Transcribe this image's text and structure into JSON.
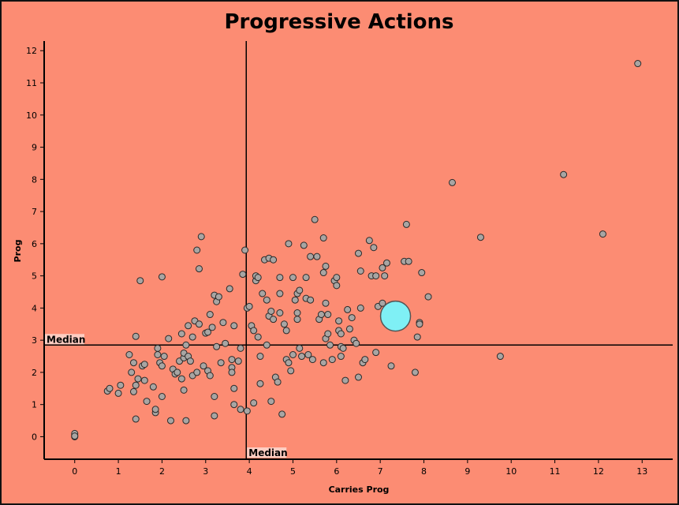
{
  "chart_data": {
    "type": "scatter",
    "title": "Progressive Actions",
    "xlabel": "Carries Prog",
    "ylabel": "Prog",
    "xlim": [
      -0.7,
      13.7
    ],
    "ylim": [
      -0.7,
      12.3
    ],
    "xticks": [
      0,
      1,
      2,
      3,
      4,
      5,
      6,
      7,
      8,
      9,
      10,
      11,
      12,
      13
    ],
    "yticks": [
      0,
      1,
      2,
      3,
      4,
      5,
      6,
      7,
      8,
      9,
      10,
      11,
      12
    ],
    "grid": false,
    "median_x": 3.93,
    "median_y": 2.85,
    "median_x_label": "Median",
    "median_y_label": "Median",
    "colors": {
      "background": "#fc8c73",
      "point_fill": "#a8a5a3",
      "point_stroke": "#2a2a2a",
      "highlight_fill": "#7ff0f5",
      "highlight_stroke": "#555555",
      "line": "#000000"
    },
    "highlight": {
      "x": 7.35,
      "y": 3.75
    },
    "points": [
      [
        0,
        0.0
      ],
      [
        0,
        0.05
      ],
      [
        0,
        0.1
      ],
      [
        0,
        0.02
      ],
      [
        0.75,
        1.42
      ],
      [
        0.8,
        1.5
      ],
      [
        1.0,
        1.35
      ],
      [
        1.05,
        1.6
      ],
      [
        1.25,
        2.55
      ],
      [
        1.3,
        2.0
      ],
      [
        1.35,
        2.3
      ],
      [
        1.35,
        1.4
      ],
      [
        1.4,
        1.6
      ],
      [
        1.4,
        3.12
      ],
      [
        1.4,
        0.55
      ],
      [
        1.45,
        1.8
      ],
      [
        1.5,
        4.85
      ],
      [
        1.55,
        2.2
      ],
      [
        1.6,
        2.25
      ],
      [
        1.6,
        1.75
      ],
      [
        1.65,
        1.1
      ],
      [
        1.8,
        1.55
      ],
      [
        1.85,
        0.75
      ],
      [
        1.85,
        0.85
      ],
      [
        1.9,
        2.75
      ],
      [
        1.9,
        2.55
      ],
      [
        1.95,
        2.3
      ],
      [
        2.0,
        4.97
      ],
      [
        2.0,
        2.2
      ],
      [
        2.0,
        1.25
      ],
      [
        2.05,
        2.5
      ],
      [
        2.15,
        3.05
      ],
      [
        2.2,
        0.5
      ],
      [
        2.25,
        2.1
      ],
      [
        2.3,
        1.95
      ],
      [
        2.35,
        2.0
      ],
      [
        2.4,
        2.35
      ],
      [
        2.45,
        1.8
      ],
      [
        2.45,
        3.2
      ],
      [
        2.5,
        2.45
      ],
      [
        2.5,
        2.6
      ],
      [
        2.5,
        1.45
      ],
      [
        2.55,
        2.85
      ],
      [
        2.55,
        0.5
      ],
      [
        2.6,
        2.5
      ],
      [
        2.6,
        3.45
      ],
      [
        2.65,
        2.35
      ],
      [
        2.7,
        1.9
      ],
      [
        2.7,
        3.1
      ],
      [
        2.75,
        3.6
      ],
      [
        2.8,
        5.8
      ],
      [
        2.8,
        2.0
      ],
      [
        2.85,
        5.22
      ],
      [
        2.85,
        3.5
      ],
      [
        2.9,
        6.22
      ],
      [
        2.95,
        2.2
      ],
      [
        3.0,
        3.22
      ],
      [
        3.05,
        3.25
      ],
      [
        3.05,
        2.05
      ],
      [
        3.1,
        1.9
      ],
      [
        3.1,
        3.8
      ],
      [
        3.15,
        3.4
      ],
      [
        3.2,
        0.65
      ],
      [
        3.2,
        1.25
      ],
      [
        3.2,
        4.4
      ],
      [
        3.25,
        4.2
      ],
      [
        3.25,
        2.8
      ],
      [
        3.3,
        4.35
      ],
      [
        3.35,
        2.3
      ],
      [
        3.4,
        3.55
      ],
      [
        3.45,
        2.9
      ],
      [
        3.55,
        4.6
      ],
      [
        3.6,
        2.15
      ],
      [
        3.6,
        2.0
      ],
      [
        3.6,
        2.4
      ],
      [
        3.65,
        1.5
      ],
      [
        3.65,
        1.0
      ],
      [
        3.65,
        3.45
      ],
      [
        3.75,
        2.35
      ],
      [
        3.8,
        2.75
      ],
      [
        3.8,
        0.85
      ],
      [
        3.85,
        5.05
      ],
      [
        3.9,
        5.8
      ],
      [
        3.95,
        0.8
      ],
      [
        3.95,
        4.0
      ],
      [
        4.0,
        4.05
      ],
      [
        4.05,
        3.45
      ],
      [
        4.1,
        3.3
      ],
      [
        4.1,
        1.05
      ],
      [
        4.15,
        4.85
      ],
      [
        4.15,
        5.0
      ],
      [
        4.2,
        4.95
      ],
      [
        4.2,
        3.1
      ],
      [
        4.25,
        2.5
      ],
      [
        4.25,
        1.65
      ],
      [
        4.3,
        4.45
      ],
      [
        4.35,
        5.5
      ],
      [
        4.4,
        2.85
      ],
      [
        4.4,
        4.25
      ],
      [
        4.45,
        5.55
      ],
      [
        4.45,
        3.75
      ],
      [
        4.5,
        3.9
      ],
      [
        4.5,
        1.1
      ],
      [
        4.55,
        5.5
      ],
      [
        4.55,
        3.65
      ],
      [
        4.6,
        1.85
      ],
      [
        4.65,
        1.7
      ],
      [
        4.7,
        3.85
      ],
      [
        4.7,
        4.45
      ],
      [
        4.7,
        4.95
      ],
      [
        4.75,
        0.7
      ],
      [
        4.8,
        3.5
      ],
      [
        4.85,
        2.4
      ],
      [
        4.85,
        3.3
      ],
      [
        4.9,
        6.0
      ],
      [
        4.9,
        2.3
      ],
      [
        4.95,
        2.05
      ],
      [
        5.0,
        4.95
      ],
      [
        5.0,
        2.55
      ],
      [
        5.05,
        4.25
      ],
      [
        5.1,
        3.85
      ],
      [
        5.1,
        3.65
      ],
      [
        5.1,
        4.45
      ],
      [
        5.15,
        4.55
      ],
      [
        5.15,
        2.75
      ],
      [
        5.2,
        2.5
      ],
      [
        5.25,
        5.95
      ],
      [
        5.3,
        4.95
      ],
      [
        5.3,
        4.3
      ],
      [
        5.35,
        2.55
      ],
      [
        5.4,
        4.25
      ],
      [
        5.4,
        5.6
      ],
      [
        5.45,
        2.4
      ],
      [
        5.5,
        6.75
      ],
      [
        5.55,
        5.6
      ],
      [
        5.6,
        3.65
      ],
      [
        5.65,
        3.8
      ],
      [
        5.7,
        6.18
      ],
      [
        5.7,
        5.1
      ],
      [
        5.7,
        2.3
      ],
      [
        5.75,
        5.3
      ],
      [
        5.75,
        4.15
      ],
      [
        5.75,
        3.05
      ],
      [
        5.8,
        3.8
      ],
      [
        5.8,
        3.2
      ],
      [
        5.85,
        2.85
      ],
      [
        5.9,
        2.4
      ],
      [
        5.95,
        4.85
      ],
      [
        6.0,
        4.95
      ],
      [
        6.0,
        4.7
      ],
      [
        6.05,
        3.6
      ],
      [
        6.05,
        3.3
      ],
      [
        6.1,
        3.2
      ],
      [
        6.1,
        2.5
      ],
      [
        6.1,
        2.8
      ],
      [
        6.15,
        2.75
      ],
      [
        6.2,
        1.75
      ],
      [
        6.25,
        3.95
      ],
      [
        6.3,
        3.35
      ],
      [
        6.35,
        3.7
      ],
      [
        6.4,
        3.0
      ],
      [
        6.45,
        2.9
      ],
      [
        6.5,
        5.7
      ],
      [
        6.5,
        1.85
      ],
      [
        6.55,
        4.0
      ],
      [
        6.55,
        5.15
      ],
      [
        6.6,
        2.3
      ],
      [
        6.65,
        2.4
      ],
      [
        6.75,
        6.1
      ],
      [
        6.8,
        5.0
      ],
      [
        6.85,
        5.88
      ],
      [
        6.9,
        2.62
      ],
      [
        6.9,
        5.0
      ],
      [
        6.95,
        4.05
      ],
      [
        7.05,
        4.15
      ],
      [
        7.05,
        5.25
      ],
      [
        7.1,
        5.0
      ],
      [
        7.15,
        5.4
      ],
      [
        7.25,
        2.2
      ],
      [
        7.55,
        5.45
      ],
      [
        7.6,
        6.6
      ],
      [
        7.65,
        5.45
      ],
      [
        7.8,
        2.0
      ],
      [
        7.85,
        3.1
      ],
      [
        7.9,
        3.55
      ],
      [
        7.9,
        3.5
      ],
      [
        7.95,
        5.1
      ],
      [
        8.1,
        4.35
      ],
      [
        8.65,
        7.9
      ],
      [
        9.3,
        6.2
      ],
      [
        9.75,
        2.5
      ],
      [
        11.2,
        8.15
      ],
      [
        12.1,
        6.3
      ],
      [
        12.9,
        11.6
      ]
    ]
  }
}
